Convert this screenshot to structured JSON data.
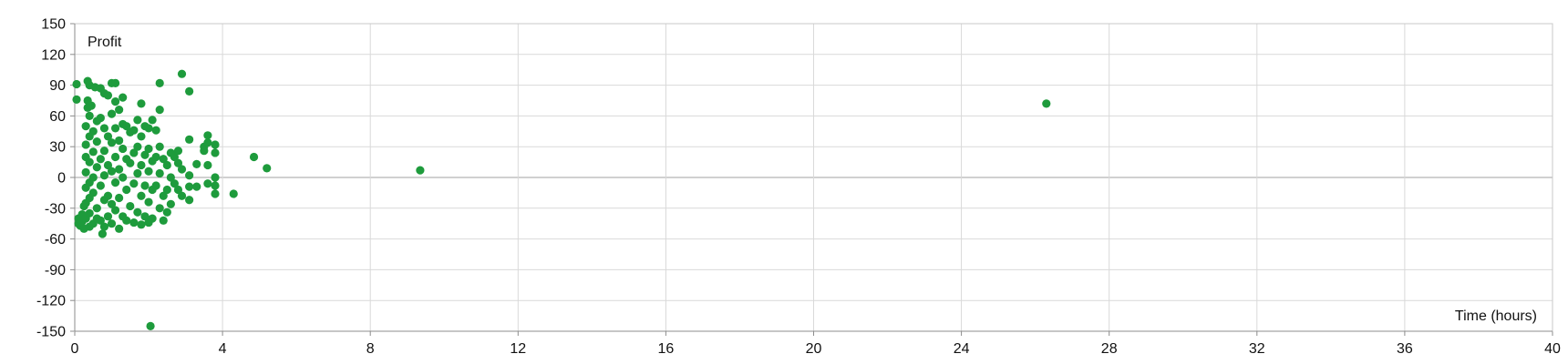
{
  "chart_data": {
    "type": "scatter",
    "title": "",
    "xlabel": "Time (hours)",
    "ylabel": "Profit",
    "xlim": [
      0,
      40
    ],
    "ylim": [
      -150,
      150
    ],
    "x_ticks": [
      0,
      4,
      8,
      12,
      16,
      20,
      24,
      28,
      32,
      36,
      40
    ],
    "y_ticks": [
      -150,
      -120,
      -90,
      -60,
      -30,
      0,
      30,
      60,
      90,
      120,
      150
    ],
    "grid": true,
    "legend": "none",
    "marker_color": "#1e9b3c",
    "series": [
      {
        "points": [
          [
            0.05,
            91
          ],
          [
            0.05,
            76
          ],
          [
            0.1,
            -40
          ],
          [
            0.1,
            -45
          ],
          [
            0.15,
            -47
          ],
          [
            0.2,
            -36
          ],
          [
            0.25,
            -28
          ],
          [
            0.25,
            -50
          ],
          [
            0.2,
            -43
          ],
          [
            0.3,
            50
          ],
          [
            0.3,
            32
          ],
          [
            0.3,
            20
          ],
          [
            0.3,
            5
          ],
          [
            0.3,
            -10
          ],
          [
            0.3,
            -25
          ],
          [
            0.3,
            -40
          ],
          [
            0.35,
            94
          ],
          [
            0.35,
            75
          ],
          [
            0.35,
            68
          ],
          [
            0.4,
            90
          ],
          [
            0.4,
            60
          ],
          [
            0.4,
            40
          ],
          [
            0.4,
            15
          ],
          [
            0.4,
            -5
          ],
          [
            0.4,
            -20
          ],
          [
            0.4,
            -35
          ],
          [
            0.4,
            -48
          ],
          [
            0.45,
            70
          ],
          [
            0.5,
            45
          ],
          [
            0.5,
            25
          ],
          [
            0.5,
            0
          ],
          [
            0.5,
            -15
          ],
          [
            0.5,
            -45
          ],
          [
            0.55,
            88
          ],
          [
            0.6,
            55
          ],
          [
            0.6,
            35
          ],
          [
            0.6,
            10
          ],
          [
            0.6,
            -30
          ],
          [
            0.6,
            -40
          ],
          [
            0.7,
            87
          ],
          [
            0.7,
            58
          ],
          [
            0.7,
            18
          ],
          [
            0.7,
            -8
          ],
          [
            0.7,
            -42
          ],
          [
            0.75,
            -55
          ],
          [
            0.8,
            82
          ],
          [
            0.8,
            48
          ],
          [
            0.8,
            26
          ],
          [
            0.8,
            2
          ],
          [
            0.8,
            -22
          ],
          [
            0.8,
            -48
          ],
          [
            0.9,
            80
          ],
          [
            0.9,
            40
          ],
          [
            0.9,
            12
          ],
          [
            0.9,
            -18
          ],
          [
            0.9,
            -38
          ],
          [
            1.0,
            92
          ],
          [
            1.0,
            62
          ],
          [
            1.0,
            34
          ],
          [
            1.0,
            6
          ],
          [
            1.0,
            -26
          ],
          [
            1.0,
            -45
          ],
          [
            1.1,
            92
          ],
          [
            1.1,
            74
          ],
          [
            1.1,
            48
          ],
          [
            1.1,
            20
          ],
          [
            1.1,
            -5
          ],
          [
            1.1,
            -32
          ],
          [
            1.2,
            66
          ],
          [
            1.2,
            36
          ],
          [
            1.2,
            8
          ],
          [
            1.2,
            -20
          ],
          [
            1.2,
            -50
          ],
          [
            1.3,
            78
          ],
          [
            1.3,
            52
          ],
          [
            1.3,
            28
          ],
          [
            1.3,
            0
          ],
          [
            1.3,
            -38
          ],
          [
            1.4,
            50
          ],
          [
            1.4,
            18
          ],
          [
            1.4,
            -12
          ],
          [
            1.4,
            -42
          ],
          [
            1.5,
            44
          ],
          [
            1.5,
            14
          ],
          [
            1.5,
            -28
          ],
          [
            1.6,
            46
          ],
          [
            1.6,
            24
          ],
          [
            1.6,
            -6
          ],
          [
            1.6,
            -44
          ],
          [
            1.7,
            56
          ],
          [
            1.7,
            30
          ],
          [
            1.7,
            4
          ],
          [
            1.7,
            -34
          ],
          [
            1.8,
            72
          ],
          [
            1.8,
            40
          ],
          [
            1.8,
            12
          ],
          [
            1.8,
            -18
          ],
          [
            1.8,
            -46
          ],
          [
            1.9,
            50
          ],
          [
            1.9,
            22
          ],
          [
            1.9,
            -8
          ],
          [
            1.9,
            -38
          ],
          [
            2.0,
            48
          ],
          [
            2.0,
            28
          ],
          [
            2.0,
            6
          ],
          [
            2.0,
            -24
          ],
          [
            2.0,
            -44
          ],
          [
            2.05,
            -145
          ],
          [
            2.1,
            56
          ],
          [
            2.1,
            16
          ],
          [
            2.1,
            -12
          ],
          [
            2.1,
            -40
          ],
          [
            2.2,
            46
          ],
          [
            2.2,
            20
          ],
          [
            2.2,
            -8
          ],
          [
            2.3,
            92
          ],
          [
            2.3,
            66
          ],
          [
            2.3,
            30
          ],
          [
            2.3,
            4
          ],
          [
            2.3,
            -30
          ],
          [
            2.4,
            18
          ],
          [
            2.4,
            -18
          ],
          [
            2.4,
            -42
          ],
          [
            2.5,
            12
          ],
          [
            2.5,
            -12
          ],
          [
            2.5,
            -34
          ],
          [
            2.6,
            24
          ],
          [
            2.6,
            0
          ],
          [
            2.6,
            -26
          ],
          [
            2.7,
            20
          ],
          [
            2.7,
            -6
          ],
          [
            2.8,
            26
          ],
          [
            2.8,
            14
          ],
          [
            2.8,
            -12
          ],
          [
            2.9,
            101
          ],
          [
            2.9,
            8
          ],
          [
            2.9,
            -18
          ],
          [
            3.1,
            84
          ],
          [
            3.1,
            37
          ],
          [
            3.1,
            2
          ],
          [
            3.1,
            -9
          ],
          [
            3.1,
            -22
          ],
          [
            3.3,
            13
          ],
          [
            3.3,
            -9
          ],
          [
            3.5,
            26
          ],
          [
            3.5,
            30
          ],
          [
            3.6,
            41
          ],
          [
            3.6,
            34
          ],
          [
            3.6,
            12
          ],
          [
            3.6,
            -6
          ],
          [
            3.8,
            32
          ],
          [
            3.8,
            24
          ],
          [
            3.8,
            0
          ],
          [
            3.8,
            -8
          ],
          [
            3.8,
            -16
          ],
          [
            4.3,
            -16
          ],
          [
            4.85,
            20
          ],
          [
            5.2,
            9
          ],
          [
            9.35,
            7
          ],
          [
            26.3,
            72
          ]
        ]
      }
    ]
  }
}
